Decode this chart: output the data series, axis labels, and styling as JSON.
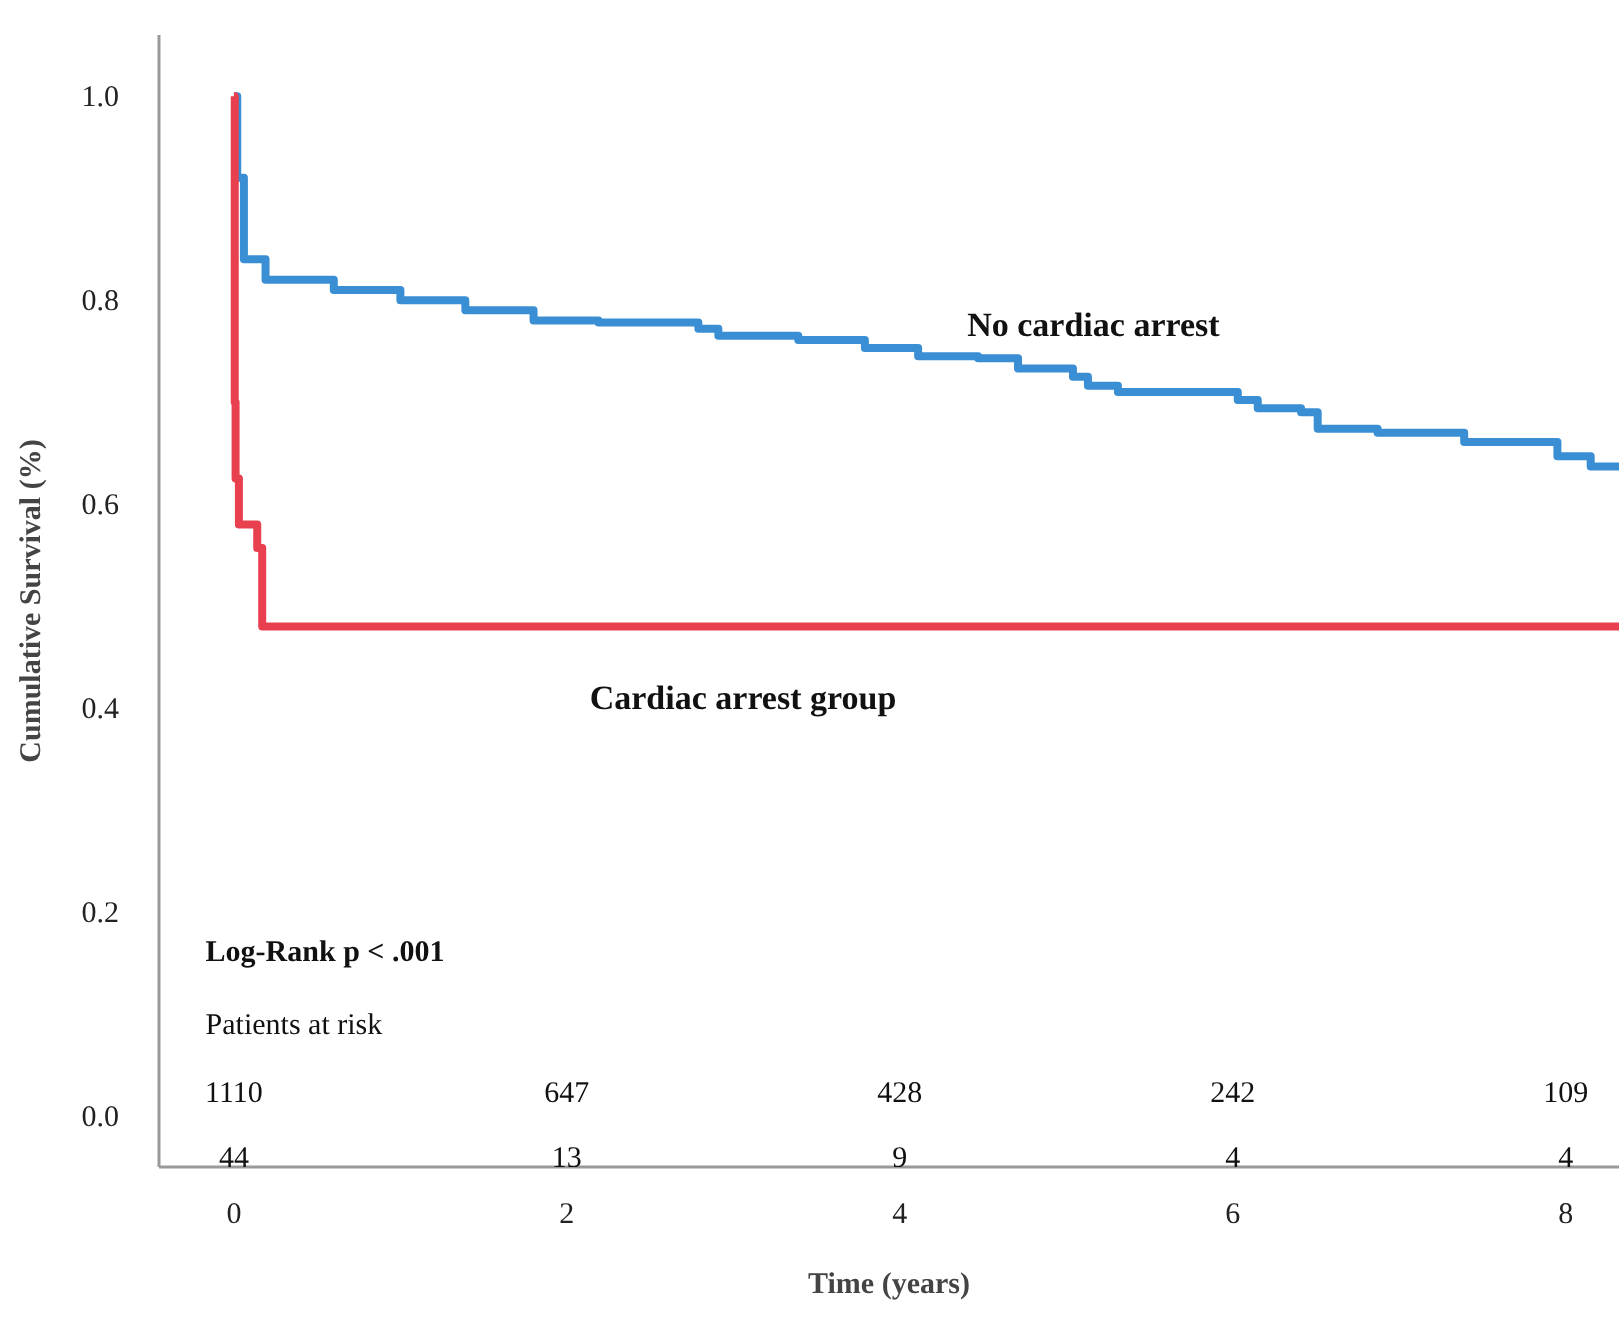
{
  "chart_data": {
    "type": "step",
    "xlabel": "Time (years)",
    "ylabel": "Cumulative Survival (%)",
    "xlim": [
      -0.45,
      8.32
    ],
    "ylim": [
      -0.05,
      1.06
    ],
    "xticks": [
      0,
      2,
      4,
      6,
      8
    ],
    "yticks": [
      {
        "value": 0,
        "label": "0.0"
      },
      0.2,
      0.4,
      0.6,
      0.8,
      {
        "value": 1,
        "label": "1.0"
      }
    ],
    "grid": false,
    "series": [
      {
        "name": "No cardiac arrest",
        "color": "#3a8fd4",
        "x": [
          0,
          0.02,
          0.06,
          0.19,
          0.6,
          1.0,
          1.39,
          1.8,
          2.19,
          2.79,
          2.91,
          3.39,
          3.79,
          4.11,
          4.47,
          4.71,
          5.04,
          5.13,
          5.31,
          6.03,
          6.15,
          6.41,
          6.51,
          6.87,
          7.39,
          7.95,
          8.15,
          8.32
        ],
        "values": [
          1.0,
          0.92,
          0.84,
          0.82,
          0.81,
          0.8,
          0.79,
          0.78,
          0.778,
          0.772,
          0.765,
          0.761,
          0.753,
          0.745,
          0.743,
          0.733,
          0.725,
          0.716,
          0.71,
          0.702,
          0.694,
          0.69,
          0.674,
          0.67,
          0.661,
          0.647,
          0.637,
          0.637
        ]
      },
      {
        "name": "Cardiac arrest group",
        "color": "#e8404f",
        "x": [
          0,
          0.005,
          0.01,
          0.03,
          0.14,
          0.17,
          8.32
        ],
        "values": [
          1.0,
          0.7,
          0.625,
          0.58,
          0.557,
          0.48,
          0.48
        ]
      }
    ],
    "annotations": [
      "Log-Rank p < .001",
      "Patients at risk",
      "1110",
      "647",
      "428",
      "242",
      "109",
      "44",
      "13",
      "9",
      "4",
      "4"
    ]
  }
}
